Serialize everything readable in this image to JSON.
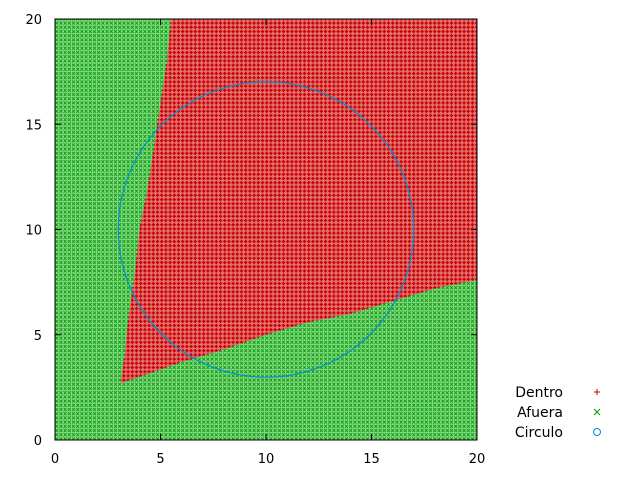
{
  "chart_data": {
    "type": "scatter",
    "title": "",
    "xlabel": "",
    "ylabel": "",
    "xlim": [
      0,
      20
    ],
    "ylim": [
      0,
      20
    ],
    "xticks": [
      0,
      5,
      10,
      15,
      20
    ],
    "yticks": [
      0,
      5,
      10,
      15,
      20
    ],
    "grid": false,
    "legend_position": "bottom-right",
    "sample_spacing": 0.1,
    "series": [
      {
        "name": "Dentro",
        "marker": "+",
        "color": "#cc0000",
        "region_polygon": [
          [
            3.1,
            2.7
          ],
          [
            4.0,
            3.0
          ],
          [
            6.0,
            3.7
          ],
          [
            8.0,
            4.3
          ],
          [
            10.0,
            5.0
          ],
          [
            12.0,
            5.6
          ],
          [
            14.0,
            6.0
          ],
          [
            16.0,
            6.6
          ],
          [
            18.0,
            7.2
          ],
          [
            20.0,
            7.6
          ],
          [
            20.0,
            20.0
          ],
          [
            5.5,
            20.0
          ],
          [
            5.3,
            18.0
          ],
          [
            5.0,
            16.0
          ],
          [
            4.7,
            14.0
          ],
          [
            4.4,
            12.0
          ],
          [
            4.0,
            10.0
          ],
          [
            3.8,
            8.0
          ],
          [
            3.5,
            6.0
          ],
          [
            3.3,
            4.0
          ]
        ]
      },
      {
        "name": "Afuera",
        "marker": "x",
        "color": "#00a000",
        "region": "complement of Dentro within [0,20]x[0,20]"
      },
      {
        "name": "Circulo",
        "marker": "o",
        "color": "#0090d0",
        "center": [
          10.0,
          10.0
        ],
        "radius": 7.0
      }
    ]
  }
}
